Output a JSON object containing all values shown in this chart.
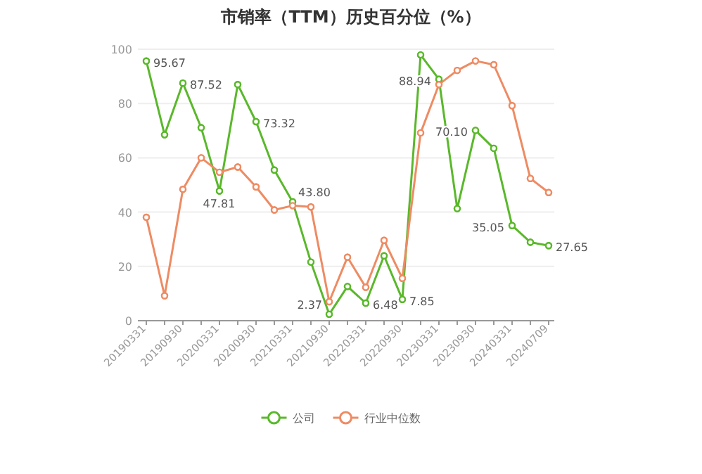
{
  "chart_data": {
    "type": "line",
    "title": "市销率（TTM）历史百分位（%）",
    "categories": [
      "20190331",
      null,
      "20190930",
      null,
      "20200331",
      null,
      "20200930",
      null,
      "20210331",
      null,
      "20210930",
      null,
      "20220331",
      null,
      "20220930",
      null,
      "20230331",
      null,
      "20230930",
      null,
      "20240331",
      null,
      "20240709"
    ],
    "series": [
      {
        "name": "公司",
        "color": "#5ab82b",
        "values": [
          95.67,
          68.5,
          87.52,
          71.1,
          47.81,
          87.0,
          73.32,
          55.5,
          43.8,
          21.6,
          2.37,
          12.6,
          6.48,
          23.9,
          7.85,
          97.9,
          88.94,
          41.3,
          70.1,
          63.5,
          35.05,
          28.9,
          27.65
        ],
        "value_labels": [
          "95.67",
          null,
          "87.52",
          null,
          "47.81",
          null,
          "73.32",
          null,
          "43.80",
          null,
          "2.37",
          null,
          "6.48",
          null,
          "7.85",
          null,
          "88.94",
          null,
          "70.10",
          null,
          "35.05",
          null,
          "27.65"
        ]
      },
      {
        "name": "行业中位数",
        "color": "#ee8b63",
        "values": [
          38.1,
          9.2,
          48.4,
          60.0,
          54.7,
          56.6,
          49.3,
          40.8,
          42.4,
          41.9,
          7.0,
          23.4,
          12.3,
          29.6,
          15.6,
          69.2,
          87.0,
          92.2,
          95.7,
          94.3,
          79.2,
          52.4,
          47.2
        ]
      }
    ],
    "ylim": [
      0,
      100
    ],
    "yticks": [
      0,
      20,
      40,
      60,
      80,
      100
    ],
    "grid": "y",
    "legend": "bottom",
    "marker": "circle",
    "line_style": "solid"
  }
}
